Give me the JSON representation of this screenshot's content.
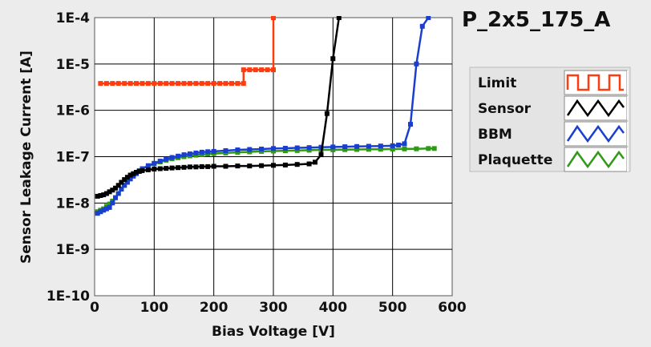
{
  "chart_data": {
    "type": "line",
    "title": "P_2x5_175_A",
    "xlabel": "Bias Voltage [V]",
    "ylabel": "Sensor Leakage Current [A]",
    "x_scale": "linear",
    "y_scale": "log",
    "xlim": [
      0,
      600
    ],
    "ylim": [
      1e-10,
      0.0001
    ],
    "xticks": [
      0,
      100,
      200,
      300,
      400,
      500,
      600
    ],
    "xtick_labels": [
      "0",
      "100",
      "200",
      "300",
      "400",
      "500",
      "600"
    ],
    "yticks": [
      1e-10,
      1e-09,
      1e-08,
      1e-07,
      1e-06,
      1e-05,
      0.0001
    ],
    "ytick_labels": [
      "1E-10",
      "1E-9",
      "1E-8",
      "1E-7",
      "1E-6",
      "1E-5",
      "1E-4"
    ],
    "grid": true,
    "legend_position": "right",
    "series": [
      {
        "name": "Limit",
        "color": "#ff3b10",
        "marker": "square",
        "line": "step",
        "x": [
          10,
          20,
          30,
          40,
          50,
          60,
          70,
          80,
          90,
          100,
          110,
          120,
          130,
          140,
          150,
          160,
          170,
          180,
          190,
          200,
          210,
          220,
          230,
          240,
          250,
          250,
          260,
          270,
          280,
          290,
          300,
          300
        ],
        "y": [
          3.8e-06,
          3.8e-06,
          3.8e-06,
          3.8e-06,
          3.8e-06,
          3.8e-06,
          3.8e-06,
          3.8e-06,
          3.8e-06,
          3.8e-06,
          3.8e-06,
          3.8e-06,
          3.8e-06,
          3.8e-06,
          3.8e-06,
          3.8e-06,
          3.8e-06,
          3.8e-06,
          3.8e-06,
          3.8e-06,
          3.8e-06,
          3.8e-06,
          3.8e-06,
          3.8e-06,
          3.8e-06,
          7.5e-06,
          7.5e-06,
          7.5e-06,
          7.5e-06,
          7.5e-06,
          7.5e-06,
          0.0001
        ]
      },
      {
        "name": "Sensor",
        "color": "#000000",
        "marker": "square",
        "line": "solid",
        "x": [
          5,
          10,
          15,
          20,
          25,
          30,
          35,
          40,
          45,
          50,
          55,
          60,
          65,
          70,
          75,
          80,
          90,
          100,
          110,
          120,
          130,
          140,
          150,
          160,
          170,
          180,
          190,
          200,
          220,
          240,
          260,
          280,
          300,
          320,
          340,
          360,
          370,
          380,
          390,
          400,
          410
        ],
        "y": [
          1.4e-08,
          1.45e-08,
          1.5e-08,
          1.6e-08,
          1.75e-08,
          1.9e-08,
          2.1e-08,
          2.4e-08,
          2.8e-08,
          3.2e-08,
          3.6e-08,
          4e-08,
          4.3e-08,
          4.6e-08,
          4.8e-08,
          5e-08,
          5.2e-08,
          5.4e-08,
          5.5e-08,
          5.6e-08,
          5.7e-08,
          5.8e-08,
          5.9e-08,
          6e-08,
          6e-08,
          6.1e-08,
          6.1e-08,
          6.2e-08,
          6.2e-08,
          6.3e-08,
          6.3e-08,
          6.4e-08,
          6.5e-08,
          6.6e-08,
          6.8e-08,
          7e-08,
          7.6e-08,
          1.1e-07,
          8.5e-07,
          1.3e-05,
          0.0001
        ]
      },
      {
        "name": "BBM",
        "color": "#1a3fd0",
        "marker": "square",
        "line": "solid",
        "x": [
          5,
          10,
          15,
          20,
          25,
          30,
          35,
          40,
          45,
          50,
          55,
          60,
          65,
          70,
          75,
          80,
          90,
          100,
          110,
          120,
          130,
          140,
          150,
          160,
          170,
          180,
          190,
          200,
          220,
          240,
          260,
          280,
          300,
          320,
          340,
          360,
          380,
          400,
          420,
          440,
          460,
          480,
          500,
          510,
          520,
          530,
          540,
          550,
          560
        ],
        "y": [
          6e-09,
          6.5e-09,
          7e-09,
          7.5e-09,
          8e-09,
          1e-08,
          1.3e-08,
          1.6e-08,
          2e-08,
          2.4e-08,
          2.8e-08,
          3.3e-08,
          3.8e-08,
          4.3e-08,
          4.9e-08,
          5.5e-08,
          6.4e-08,
          7.2e-08,
          8e-08,
          8.8e-08,
          9.6e-08,
          1.03e-07,
          1.1e-07,
          1.15e-07,
          1.2e-07,
          1.25e-07,
          1.28e-07,
          1.3e-07,
          1.35e-07,
          1.4e-07,
          1.43e-07,
          1.46e-07,
          1.5e-07,
          1.52e-07,
          1.55e-07,
          1.57e-07,
          1.6e-07,
          1.62e-07,
          1.64e-07,
          1.66e-07,
          1.68e-07,
          1.7e-07,
          1.72e-07,
          1.78e-07,
          1.9e-07,
          5e-07,
          1e-05,
          6.5e-05,
          0.0001
        ]
      },
      {
        "name": "Plaquette",
        "color": "#2f9a16",
        "marker": "square",
        "line": "solid",
        "x": [
          5,
          10,
          15,
          20,
          25,
          30,
          35,
          40,
          45,
          50,
          55,
          60,
          65,
          70,
          75,
          80,
          90,
          100,
          110,
          120,
          130,
          140,
          150,
          160,
          170,
          180,
          190,
          200,
          220,
          240,
          260,
          280,
          300,
          320,
          340,
          360,
          380,
          400,
          420,
          440,
          460,
          480,
          500,
          520,
          540,
          560,
          570
        ],
        "y": [
          6.5e-09,
          7e-09,
          7.5e-09,
          8.5e-09,
          9.5e-09,
          1.1e-08,
          1.3e-08,
          1.6e-08,
          2e-08,
          2.4e-08,
          2.9e-08,
          3.4e-08,
          3.9e-08,
          4.4e-08,
          5e-08,
          5.5e-08,
          6.3e-08,
          7e-08,
          7.7e-08,
          8.4e-08,
          9e-08,
          9.5e-08,
          1e-07,
          1.04e-07,
          1.08e-07,
          1.11e-07,
          1.14e-07,
          1.17e-07,
          1.2e-07,
          1.24e-07,
          1.27e-07,
          1.3e-07,
          1.32e-07,
          1.34e-07,
          1.36e-07,
          1.38e-07,
          1.4e-07,
          1.41e-07,
          1.42e-07,
          1.43e-07,
          1.44e-07,
          1.45e-07,
          1.46e-07,
          1.47e-07,
          1.48e-07,
          1.5e-07,
          1.5e-07
        ]
      }
    ]
  }
}
